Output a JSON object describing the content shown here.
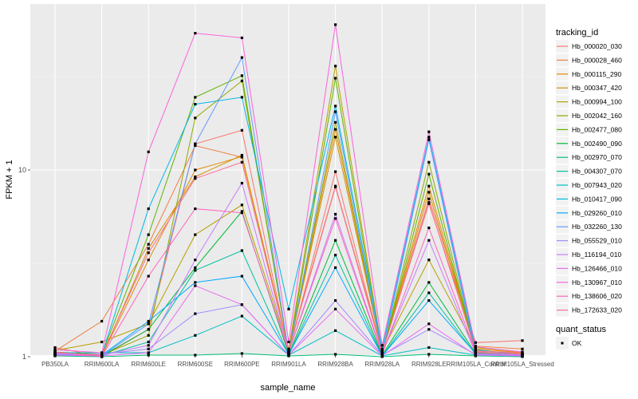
{
  "chart_data": {
    "type": "line",
    "title": "",
    "xlabel": "sample_name",
    "ylabel": "FPKM + 1",
    "y_scale": "log10",
    "ylim": [
      0.95,
      70
    ],
    "y_ticks": [
      1,
      10
    ],
    "y_tick_labels": [
      "1",
      "10"
    ],
    "grid": true,
    "legend_position": "right",
    "categories": [
      "PB350LA",
      "RRIM600LA",
      "RRIM600LE",
      "RRIM600SE",
      "RRIM600PE",
      "RRIM901LA",
      "RRIM928BA",
      "RRIM928LA",
      "RRIM928LE",
      "RRIM105LA_Control",
      "RRIM105LA_Stressed"
    ],
    "legend_title": "tracking_id",
    "marker_legend_title": "quant_status",
    "marker_legend_entries": [
      "OK"
    ],
    "series": [
      {
        "name": "Hb_000020_030",
        "color": "#F8766D",
        "status": "OK",
        "values": [
          1.12,
          1.0,
          1.4,
          13.8,
          16.3,
          1.05,
          9.8,
          1.05,
          7.0,
          1.19,
          1.22
        ]
      },
      {
        "name": "Hb_000028_460",
        "color": "#F07F40",
        "status": "OK",
        "values": [
          1.07,
          1.55,
          4.0,
          13.5,
          11.7,
          1.1,
          8.2,
          1.08,
          6.6,
          1.14,
          1.1
        ]
      },
      {
        "name": "Hb_000115_290",
        "color": "#E58700",
        "status": "OK",
        "values": [
          1.05,
          1.01,
          3.3,
          10.0,
          11.8,
          1.08,
          16.5,
          1.06,
          8.2,
          1.1,
          1.05
        ]
      },
      {
        "name": "Hb_000347_420",
        "color": "#D18F00",
        "status": "OK",
        "values": [
          1.04,
          1.0,
          3.8,
          9.2,
          12.0,
          1.07,
          15.0,
          1.05,
          7.6,
          1.08,
          1.04
        ]
      },
      {
        "name": "Hb_000994_100",
        "color": "#B79F00",
        "status": "OK",
        "values": [
          1.08,
          1.2,
          1.5,
          4.5,
          6.5,
          1.09,
          36.0,
          1.07,
          3.3,
          1.12,
          1.06
        ]
      },
      {
        "name": "Hb_002042_160",
        "color": "#8FAA00",
        "status": "OK",
        "values": [
          1.03,
          1.02,
          1.3,
          19.0,
          30.0,
          1.06,
          18.0,
          1.04,
          11.0,
          1.06,
          1.03
        ]
      },
      {
        "name": "Hb_002477_080",
        "color": "#5EB300",
        "status": "OK",
        "values": [
          1.06,
          1.03,
          4.5,
          24.5,
          32.0,
          1.04,
          31.0,
          1.03,
          9.5,
          1.05,
          1.02
        ]
      },
      {
        "name": "Hb_002490_090",
        "color": "#00BA38",
        "status": "OK",
        "values": [
          1.02,
          1.01,
          1.4,
          3.0,
          6.0,
          1.03,
          4.2,
          1.02,
          2.5,
          1.04,
          1.01
        ]
      },
      {
        "name": "Hb_002970_070",
        "color": "#00BF74",
        "status": "OK",
        "values": [
          1.01,
          1.0,
          1.02,
          1.02,
          1.04,
          1.01,
          1.03,
          1.0,
          1.03,
          1.01,
          1.0
        ]
      },
      {
        "name": "Hb_004307_070",
        "color": "#00C19F",
        "status": "OK",
        "values": [
          1.02,
          1.01,
          1.2,
          2.9,
          3.7,
          1.02,
          3.5,
          1.01,
          2.2,
          1.03,
          1.01
        ]
      },
      {
        "name": "Hb_007943_020",
        "color": "#00BFC4",
        "status": "OK",
        "values": [
          1.05,
          1.05,
          1.05,
          1.3,
          1.65,
          1.02,
          1.38,
          1.01,
          1.12,
          1.02,
          1.01
        ]
      },
      {
        "name": "Hb_010417_090",
        "color": "#00B8E7",
        "status": "OK",
        "values": [
          1.04,
          1.02,
          6.2,
          22.5,
          24.5,
          1.8,
          22.0,
          1.1,
          15.0,
          1.09,
          1.02
        ]
      },
      {
        "name": "Hb_029260_010",
        "color": "#00A9FF",
        "status": "OK",
        "values": [
          1.03,
          1.02,
          1.55,
          2.5,
          2.7,
          1.03,
          3.0,
          1.01,
          2.0,
          1.04,
          1.02
        ]
      },
      {
        "name": "Hb_032260_130",
        "color": "#619CFF",
        "status": "OK",
        "values": [
          1.02,
          1.01,
          1.5,
          13.8,
          40.0,
          1.05,
          20.5,
          1.04,
          14.5,
          1.03,
          1.01
        ]
      },
      {
        "name": "Hb_055529_010",
        "color": "#A58AFF",
        "status": "OK",
        "values": [
          1.04,
          1.03,
          1.1,
          1.7,
          1.9,
          1.02,
          2.0,
          1.02,
          1.4,
          1.03,
          1.02
        ]
      },
      {
        "name": "Hb_116194_010",
        "color": "#C77CFF",
        "status": "OK",
        "values": [
          1.03,
          1.02,
          1.15,
          3.3,
          8.5,
          1.06,
          5.8,
          1.04,
          4.2,
          1.04,
          1.02
        ]
      },
      {
        "name": "Hb_126466_010",
        "color": "#E76BF3",
        "status": "OK",
        "values": [
          1.02,
          1.01,
          1.05,
          2.4,
          1.9,
          1.02,
          1.8,
          1.01,
          1.5,
          1.02,
          1.01
        ]
      },
      {
        "name": "Hb_130967_010",
        "color": "#FA62DB",
        "status": "OK",
        "values": [
          1.09,
          1.05,
          12.5,
          54.0,
          51.0,
          1.2,
          60.0,
          1.15,
          16.0,
          1.13,
          1.06
        ]
      },
      {
        "name": "Hb_138606_020",
        "color": "#FF62BC",
        "status": "OK",
        "values": [
          1.06,
          1.0,
          2.7,
          6.2,
          5.9,
          1.06,
          5.5,
          1.03,
          4.9,
          1.06,
          1.03
        ]
      },
      {
        "name": "Hb_172633_020",
        "color": "#FF6C91",
        "status": "OK",
        "values": [
          1.05,
          1.02,
          3.6,
          9.0,
          11.0,
          1.08,
          8.1,
          1.05,
          6.7,
          1.07,
          1.05
        ]
      }
    ]
  }
}
